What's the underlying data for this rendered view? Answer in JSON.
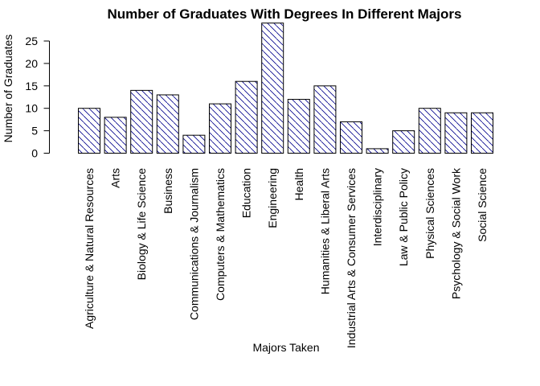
{
  "chart_data": {
    "type": "bar",
    "title": "Number of Graduates With Degrees In Different Majors",
    "xlabel": "Majors Taken",
    "ylabel": "Number of Graduates",
    "categories": [
      "Agriculture & Natural Resources",
      "Arts",
      "Biology & Life Science",
      "Business",
      "Communications & Journalism",
      "Computers & Mathematics",
      "Education",
      "Engineering",
      "Health",
      "Humanities & Liberal Arts",
      "Industrial Arts & Consumer Services",
      "Interdisciplinary",
      "Law & Public Policy",
      "Physical Sciences",
      "Psychology & Social Work",
      "Social Science"
    ],
    "values": [
      10,
      8,
      14,
      13,
      4,
      11,
      16,
      29,
      12,
      15,
      7,
      1,
      5,
      10,
      9,
      9
    ],
    "yticks": [
      "0",
      "5",
      "10",
      "15",
      "20",
      "25"
    ],
    "ylim": [
      0,
      29
    ],
    "bar_fill": "#ffffff",
    "hatch_color": "#00008b",
    "border_color": "#000000",
    "grid": false,
    "legend": "none"
  }
}
